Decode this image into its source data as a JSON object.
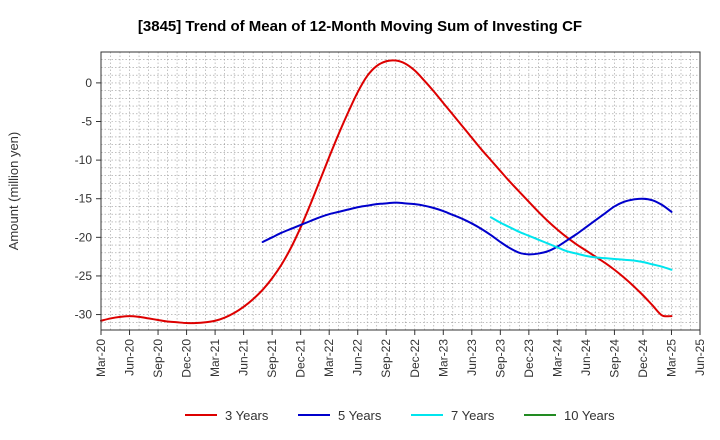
{
  "chart_data": {
    "type": "line",
    "title": "[3845]  Trend of Mean of 12-Month Moving Sum of Investing CF",
    "xlabel": "",
    "ylabel": "Amount (million yen)",
    "ylim": [
      -32,
      4
    ],
    "yticks": [
      0,
      -5,
      -10,
      -15,
      -20,
      -25,
      -30
    ],
    "xticks": [
      "Mar-20",
      "Jun-20",
      "Sep-20",
      "Dec-20",
      "Mar-21",
      "Jun-21",
      "Sep-21",
      "Dec-21",
      "Mar-22",
      "Jun-22",
      "Sep-22",
      "Dec-22",
      "Mar-23",
      "Jun-23",
      "Sep-23",
      "Dec-23",
      "Mar-24",
      "Jun-24",
      "Sep-24",
      "Dec-24",
      "Mar-25",
      "Jun-25"
    ],
    "grid": true,
    "legend_position": "bottom",
    "series": [
      {
        "name": "3 Years",
        "color": "#dd0000",
        "x": [
          "Mar-20",
          "Apr-20",
          "May-20",
          "Jun-20",
          "Jul-20",
          "Aug-20",
          "Sep-20",
          "Oct-20",
          "Nov-20",
          "Dec-20",
          "Jan-21",
          "Feb-21",
          "Mar-21",
          "Apr-21",
          "May-21",
          "Jun-21",
          "Jul-21",
          "Aug-21",
          "Sep-21",
          "Oct-21",
          "Nov-21",
          "Dec-21",
          "Jan-22",
          "Feb-22",
          "Mar-22",
          "Apr-22",
          "May-22",
          "Jun-22",
          "Jul-22",
          "Aug-22",
          "Sep-22",
          "Oct-22",
          "Nov-22",
          "Dec-22",
          "Jan-23",
          "Feb-23",
          "Mar-23",
          "Apr-23",
          "May-23",
          "Jun-23",
          "Jul-23",
          "Aug-23",
          "Sep-23",
          "Oct-23",
          "Nov-23",
          "Dec-23",
          "Jan-24",
          "Feb-24",
          "Mar-24",
          "Apr-24",
          "May-24",
          "Jun-24",
          "Jul-24",
          "Aug-24",
          "Sep-24",
          "Oct-24",
          "Nov-24",
          "Dec-24",
          "Jan-25",
          "Feb-25",
          "Mar-25"
        ],
        "values": [
          -30.8,
          -30.5,
          -30.3,
          -30.2,
          -30.3,
          -30.5,
          -30.7,
          -30.9,
          -31.0,
          -31.1,
          -31.1,
          -31.0,
          -30.8,
          -30.4,
          -29.8,
          -29.0,
          -28.0,
          -26.8,
          -25.3,
          -23.5,
          -21.3,
          -18.7,
          -15.8,
          -12.7,
          -9.6,
          -6.6,
          -3.8,
          -1.2,
          0.9,
          2.2,
          2.8,
          2.9,
          2.5,
          1.6,
          0.3,
          -1.1,
          -2.6,
          -4.1,
          -5.6,
          -7.1,
          -8.6,
          -10.0,
          -11.4,
          -12.8,
          -14.1,
          -15.4,
          -16.7,
          -17.9,
          -19.0,
          -20.0,
          -20.9,
          -21.7,
          -22.5,
          -23.3,
          -24.2,
          -25.2,
          -26.3,
          -27.5,
          -28.8,
          -30.1,
          -30.2
        ],
        "start": 0
      },
      {
        "name": "5 Years",
        "color": "#0000cc",
        "x": [
          "Aug-21",
          "Sep-21",
          "Oct-21",
          "Nov-21",
          "Dec-21",
          "Jan-22",
          "Feb-22",
          "Mar-22",
          "Apr-22",
          "May-22",
          "Jun-22",
          "Jul-22",
          "Aug-22",
          "Sep-22",
          "Oct-22",
          "Nov-22",
          "Dec-22",
          "Jan-23",
          "Feb-23",
          "Mar-23",
          "Apr-23",
          "May-23",
          "Jun-23",
          "Jul-23",
          "Aug-23",
          "Sep-23",
          "Oct-23",
          "Nov-23",
          "Dec-23",
          "Jan-24",
          "Feb-24",
          "Mar-24",
          "Apr-24",
          "May-24",
          "Jun-24",
          "Jul-24",
          "Aug-24",
          "Sep-24",
          "Oct-24",
          "Nov-24",
          "Dec-24",
          "Jan-25",
          "Feb-25",
          "Mar-25"
        ],
        "values": [
          -20.6,
          -20.0,
          -19.4,
          -18.9,
          -18.4,
          -17.9,
          -17.4,
          -17.0,
          -16.7,
          -16.4,
          -16.1,
          -15.9,
          -15.7,
          -15.6,
          -15.5,
          -15.6,
          -15.7,
          -15.9,
          -16.2,
          -16.6,
          -17.1,
          -17.6,
          -18.2,
          -18.9,
          -19.7,
          -20.6,
          -21.4,
          -22.0,
          -22.2,
          -22.1,
          -21.8,
          -21.2,
          -20.4,
          -19.6,
          -18.7,
          -17.8,
          -16.9,
          -16.0,
          -15.4,
          -15.1,
          -15.0,
          -15.2,
          -15.8,
          -16.7
        ],
        "start": 17
      },
      {
        "name": "7 Years",
        "color": "#00e5ee",
        "x": [
          "Aug-23",
          "Sep-23",
          "Oct-23",
          "Nov-23",
          "Dec-23",
          "Jan-24",
          "Feb-24",
          "Mar-24",
          "Apr-24",
          "May-24",
          "Jun-24",
          "Jul-24",
          "Aug-24",
          "Sep-24",
          "Oct-24",
          "Nov-24",
          "Dec-24",
          "Jan-25",
          "Feb-25",
          "Mar-25"
        ],
        "values": [
          -17.4,
          -18.1,
          -18.7,
          -19.3,
          -19.8,
          -20.3,
          -20.8,
          -21.3,
          -21.8,
          -22.1,
          -22.4,
          -22.6,
          -22.7,
          -22.8,
          -22.9,
          -23.0,
          -23.2,
          -23.5,
          -23.8,
          -24.2
        ],
        "start": 41
      },
      {
        "name": "10 Years",
        "color": "#228b22",
        "x": [],
        "values": [],
        "start": 0
      }
    ]
  }
}
